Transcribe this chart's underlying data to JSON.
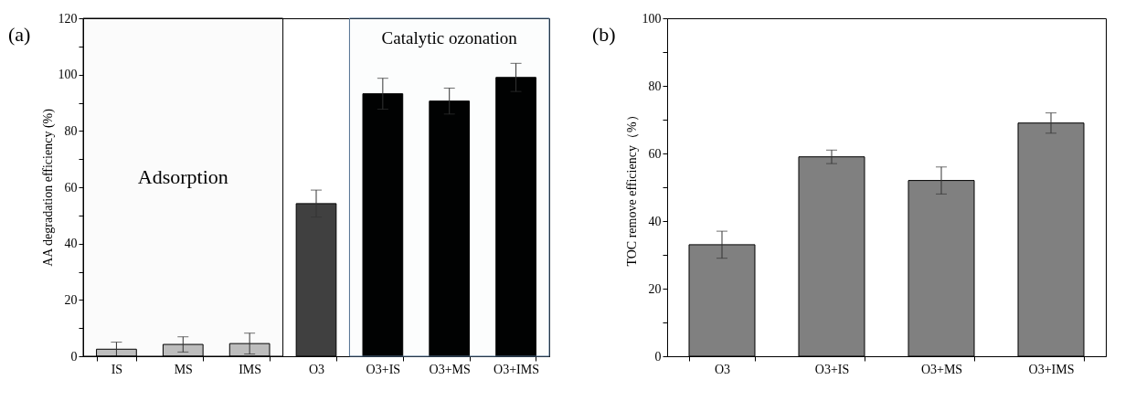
{
  "chart_data": [
    {
      "type": "bar",
      "ylabel": "AA degradation efficiency (%)",
      "annotations": [
        "(a)"
      ],
      "categories": [
        "IS",
        "MS",
        "IMS",
        "O3",
        "O3+IS",
        "O3+MS",
        "O3+IMS"
      ],
      "values": [
        2.5,
        4.2,
        4.5,
        54.2,
        93.2,
        90.6,
        99.0
      ],
      "errors": [
        2.5,
        2.7,
        3.7,
        4.8,
        5.5,
        4.6,
        5.0
      ],
      "colors": [
        "#c0c0c0",
        "#c0c0c0",
        "#c0c0c0",
        "#404040",
        "#000000",
        "#000000",
        "#000000"
      ],
      "ylim": [
        0,
        120
      ],
      "yticks": [
        0,
        {
          "value": 10,
          "label": null
        },
        20,
        {
          "value": 30,
          "label": null
        },
        40,
        {
          "value": 50,
          "label": null
        },
        60,
        {
          "value": 70,
          "label": null
        },
        80,
        {
          "value": 90,
          "label": null
        },
        100,
        {
          "value": 110,
          "label": null
        },
        120
      ],
      "bands": [
        {
          "axis": "x",
          "from": "IS",
          "to": "IMS",
          "label": "Adsorption",
          "color": "#000000"
        },
        {
          "axis": "x",
          "from": "O3+IS",
          "to": "O3+IMS",
          "label": "Catalytic  ozonation",
          "color": "#4f6f8f"
        }
      ],
      "grid": false,
      "legend": false
    },
    {
      "type": "bar",
      "ylabel": "TOC remove efficiency（%）",
      "annotations": [
        "(b)"
      ],
      "categories": [
        "O3",
        "O3+IS",
        "O3+MS",
        "O3+IMS"
      ],
      "values": [
        33,
        59,
        52,
        69
      ],
      "errors": [
        4,
        2,
        4,
        3
      ],
      "colors": [
        "#808080",
        "#808080",
        "#808080",
        "#808080"
      ],
      "ylim": [
        0,
        100
      ],
      "yticks": [
        0,
        {
          "value": 10,
          "label": null
        },
        20,
        {
          "value": 30,
          "label": null
        },
        40,
        {
          "value": 50,
          "label": null
        },
        60,
        {
          "value": 70,
          "label": null
        },
        80,
        {
          "value": 90,
          "label": null
        },
        100
      ],
      "grid": false,
      "legend": false
    }
  ]
}
